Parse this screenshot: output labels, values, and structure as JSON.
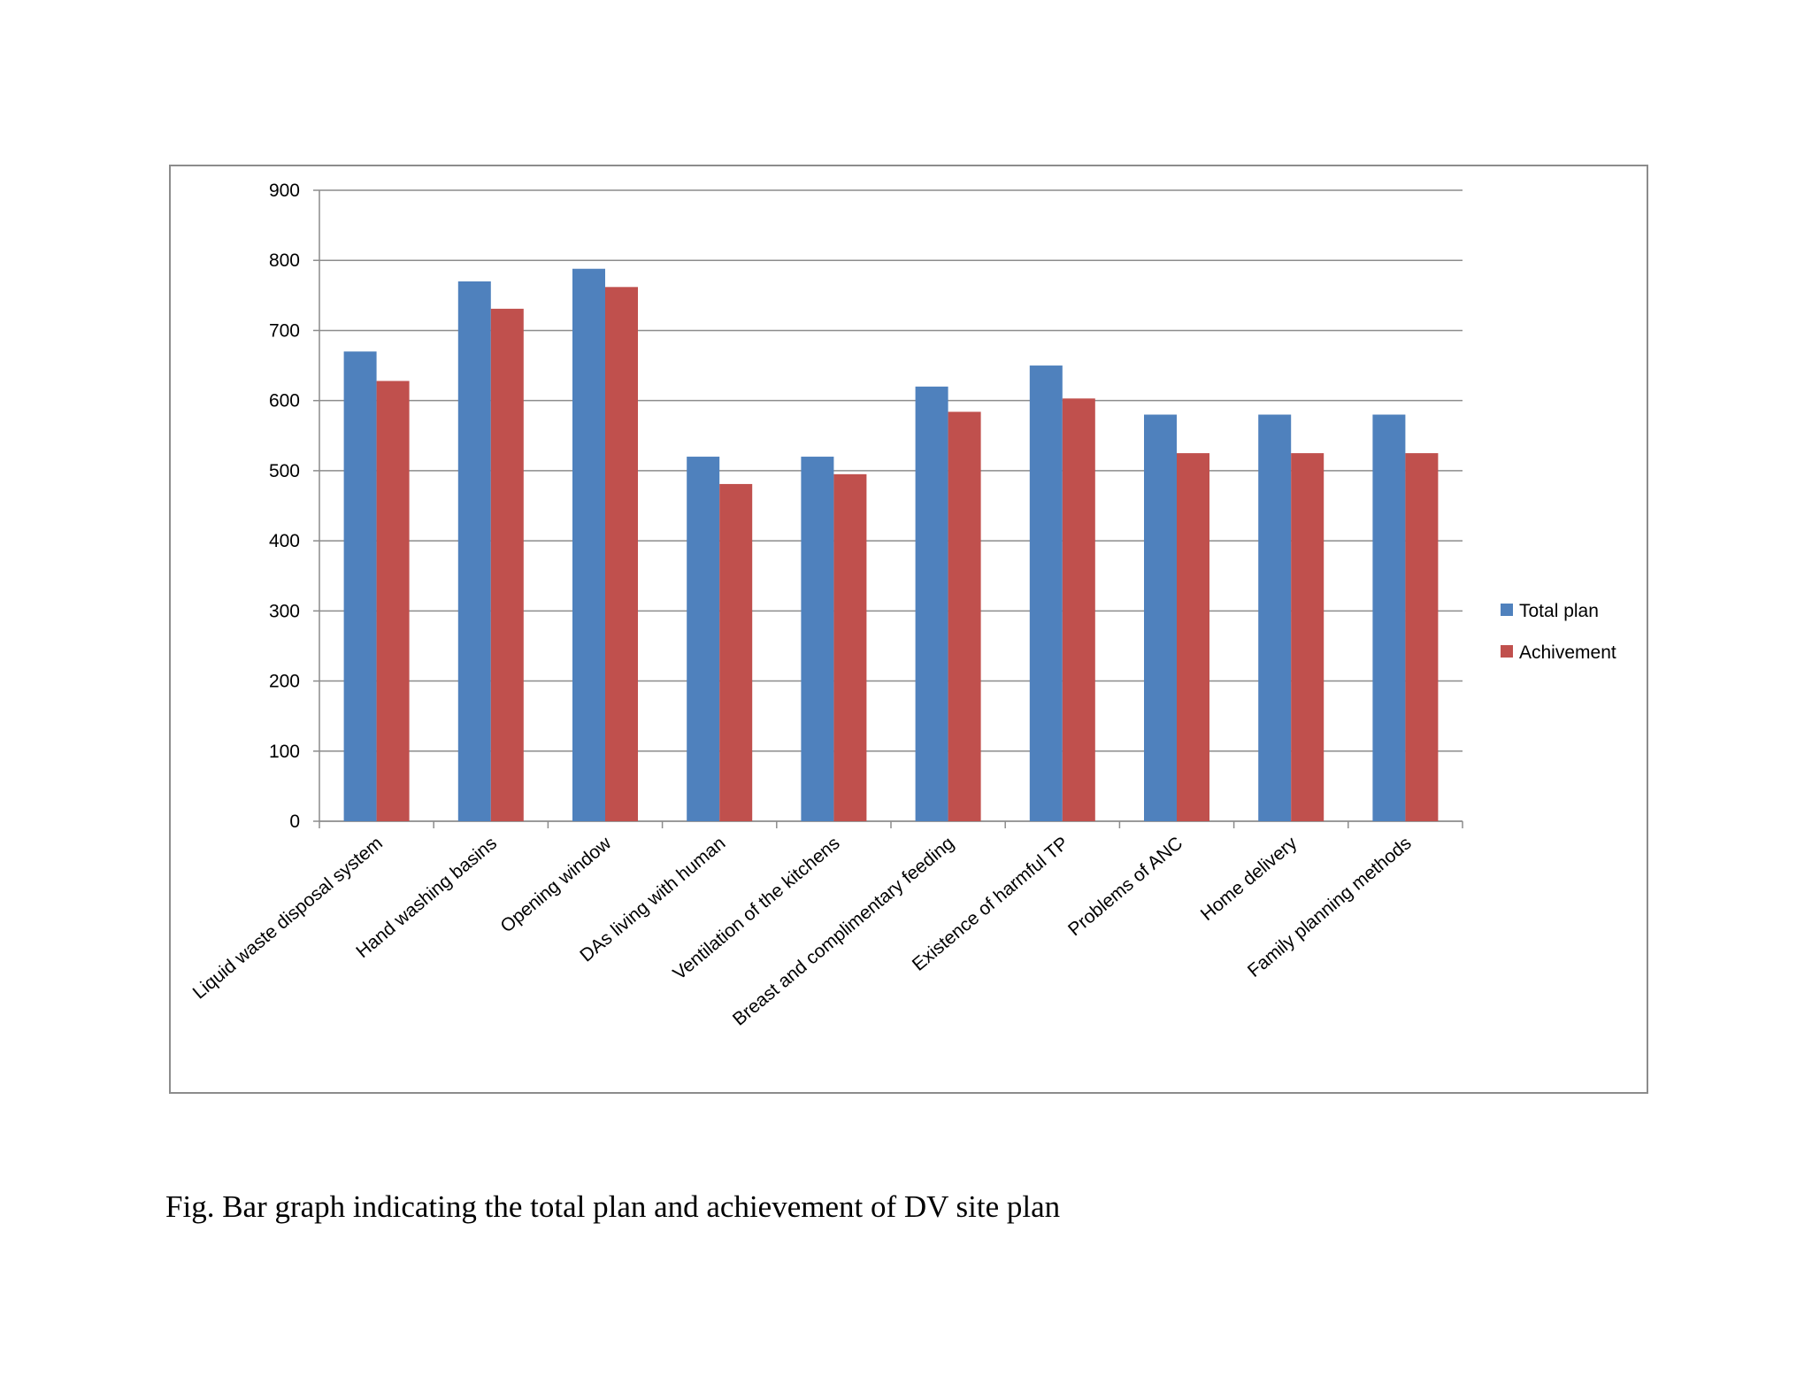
{
  "caption": "Fig. Bar graph indicating the total plan and achievement of DV site plan",
  "chart_data": {
    "type": "bar",
    "categories": [
      "Liquid waste disposal system",
      "Hand washing basins",
      "Opening window",
      "DAs living with human",
      "Ventilation of the kitchens",
      "Breast and complimentary feeding",
      "Existence of harmful TP",
      "Problems of ANC",
      "Home delivery",
      "Family planning methods"
    ],
    "series": [
      {
        "name": "Total plan",
        "color": "#4f81bd",
        "values": [
          670,
          770,
          788,
          520,
          520,
          620,
          650,
          580,
          580,
          580
        ]
      },
      {
        "name": "Achivement",
        "color": "#c0504d",
        "values": [
          628,
          731,
          762,
          481,
          495,
          584,
          603,
          525,
          525,
          525
        ]
      }
    ],
    "ylim": [
      0,
      900
    ],
    "yticks": [
      0,
      100,
      200,
      300,
      400,
      500,
      600,
      700,
      800,
      900
    ],
    "grid": true,
    "legend": "right"
  }
}
